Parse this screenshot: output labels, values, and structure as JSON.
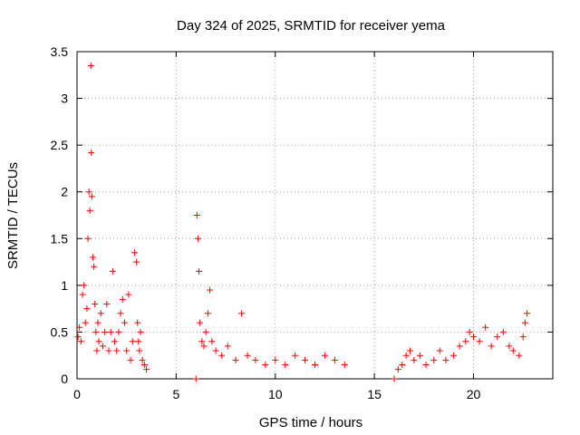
{
  "chart_data": {
    "type": "scatter",
    "title": "Day 324 of 2025, SRMTID for receiver yema",
    "xlabel": "GPS time / hours",
    "ylabel": "SRMTID / TECUs",
    "xlim": [
      0,
      24
    ],
    "ylim": [
      0,
      3.5
    ],
    "x_ticks": [
      "0",
      "5",
      "10",
      "15",
      "20"
    ],
    "y_ticks": [
      "0",
      "0.5",
      "1",
      "1.5",
      "2",
      "2.5",
      "3",
      "3.5"
    ],
    "grid": true,
    "legend": "none",
    "marker": "+",
    "color": "#ff0000",
    "series": [
      {
        "x": [
          0.05,
          0.12,
          0.2,
          0.28,
          0.35,
          0.42,
          0.5,
          0.55,
          0.6,
          0.65,
          0.7,
          0.72,
          0.75,
          0.8,
          0.85,
          0.9,
          0.95,
          1.0,
          1.05,
          1.1,
          1.2,
          1.3,
          1.4,
          1.5,
          1.6,
          1.7,
          1.8,
          1.9,
          2.0,
          2.1,
          2.2,
          2.3,
          2.4,
          2.5,
          2.6,
          2.7,
          2.8,
          2.9,
          3.0,
          3.05,
          3.1,
          3.15,
          3.2,
          3.3,
          3.4,
          3.5,
          6.0,
          6.05,
          6.1,
          6.15,
          6.2,
          6.3,
          6.4,
          6.5,
          6.6,
          6.7,
          6.8,
          7.0,
          7.3,
          7.6,
          8.0,
          8.3,
          8.6,
          9.0,
          9.5,
          10.0,
          10.5,
          11.0,
          11.5,
          12.0,
          12.5,
          13.0,
          13.5,
          16.0,
          16.2,
          16.4,
          16.6,
          16.8,
          17.0,
          17.3,
          17.6,
          18.0,
          18.3,
          18.6,
          19.0,
          19.3,
          19.6,
          19.8,
          20.0,
          20.3,
          20.6,
          20.9,
          21.2,
          21.5,
          21.8,
          22.0,
          22.3,
          22.5,
          22.6,
          22.7
        ],
        "y": [
          0.45,
          0.55,
          0.4,
          0.9,
          1.0,
          0.6,
          0.75,
          1.5,
          2.0,
          1.8,
          3.35,
          2.42,
          1.95,
          1.3,
          1.2,
          0.8,
          0.5,
          0.3,
          0.6,
          0.4,
          0.7,
          0.35,
          0.5,
          0.8,
          0.3,
          0.5,
          1.15,
          0.4,
          0.3,
          0.5,
          0.7,
          0.85,
          0.6,
          0.3,
          0.9,
          0.2,
          0.4,
          1.35,
          1.25,
          0.6,
          0.4,
          0.3,
          0.5,
          0.2,
          0.15,
          0.1,
          0.0,
          1.75,
          1.5,
          1.15,
          0.6,
          0.4,
          0.35,
          0.5,
          0.7,
          0.95,
          0.4,
          0.3,
          0.25,
          0.35,
          0.2,
          0.7,
          0.25,
          0.2,
          0.15,
          0.2,
          0.15,
          0.25,
          0.2,
          0.15,
          0.25,
          0.2,
          0.15,
          0.0,
          0.1,
          0.15,
          0.25,
          0.3,
          0.2,
          0.25,
          0.15,
          0.2,
          0.3,
          0.2,
          0.25,
          0.35,
          0.4,
          0.5,
          0.45,
          0.4,
          0.55,
          0.35,
          0.45,
          0.5,
          0.35,
          0.3,
          0.25,
          0.45,
          0.6,
          0.7
        ]
      }
    ]
  }
}
